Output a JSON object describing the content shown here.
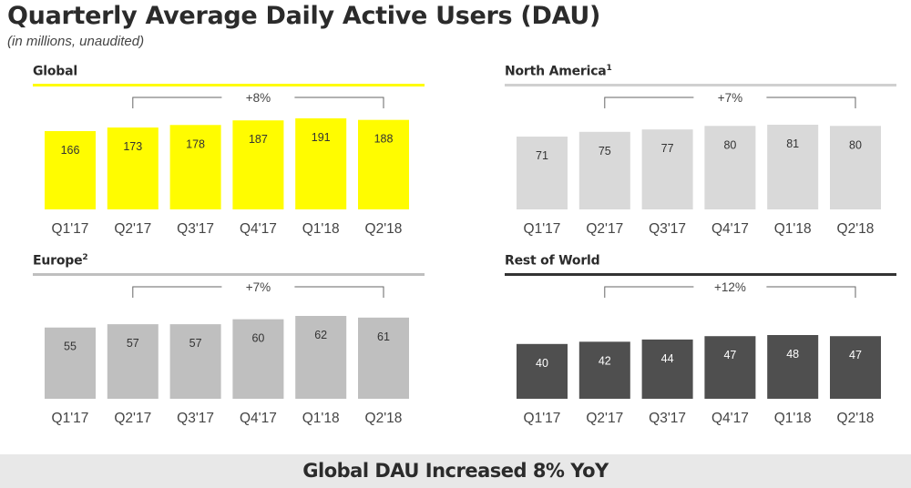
{
  "header": {
    "title": "Quarterly Average Daily Active Users (DAU)",
    "subtitle": "(in millions, unaudited)"
  },
  "footer": {
    "text": "Global DAU Increased 8% YoY"
  },
  "chart_data": [
    {
      "type": "bar",
      "title": "Global",
      "footnote": "",
      "categories": [
        "Q1'17",
        "Q2'17",
        "Q3'17",
        "Q4'17",
        "Q1'18",
        "Q2'18"
      ],
      "values": [
        166,
        173,
        178,
        187,
        191,
        188
      ],
      "growth_annotation": {
        "label": "+8%",
        "from": "Q2'17",
        "to": "Q2'18"
      },
      "bar_color": "#fffc00",
      "rule_color": "#fffc00",
      "label_color": "#333333",
      "xlabel": "",
      "ylabel": "",
      "grid": false
    },
    {
      "type": "bar",
      "title": "North America",
      "footnote": "1",
      "categories": [
        "Q1'17",
        "Q2'17",
        "Q3'17",
        "Q4'17",
        "Q1'18",
        "Q2'18"
      ],
      "values": [
        71,
        75,
        77,
        80,
        81,
        80
      ],
      "growth_annotation": {
        "label": "+7%",
        "from": "Q2'17",
        "to": "Q2'18"
      },
      "bar_color": "#d9d9d9",
      "rule_color": "#d0d0d0",
      "label_color": "#333333",
      "xlabel": "",
      "ylabel": "",
      "grid": false
    },
    {
      "type": "bar",
      "title": "Europe",
      "footnote": "2",
      "categories": [
        "Q1'17",
        "Q2'17",
        "Q3'17",
        "Q4'17",
        "Q1'18",
        "Q2'18"
      ],
      "values": [
        55,
        57,
        57,
        60,
        62,
        61
      ],
      "growth_annotation": {
        "label": "+7%",
        "from": "Q2'17",
        "to": "Q2'18"
      },
      "bar_color": "#bfbfbf",
      "rule_color": "#bfbfbf",
      "label_color": "#333333",
      "xlabel": "",
      "ylabel": "",
      "grid": false
    },
    {
      "type": "bar",
      "title": "Rest of World",
      "footnote": "",
      "categories": [
        "Q1'17",
        "Q2'17",
        "Q3'17",
        "Q4'17",
        "Q1'18",
        "Q2'18"
      ],
      "values": [
        40,
        42,
        44,
        47,
        48,
        47
      ],
      "growth_annotation": {
        "label": "+12%",
        "from": "Q2'17",
        "to": "Q2'18"
      },
      "bar_color": "#4f4f4f",
      "rule_color": "#333333",
      "label_color": "#ffffff",
      "xlabel": "",
      "ylabel": "",
      "grid": false
    }
  ]
}
